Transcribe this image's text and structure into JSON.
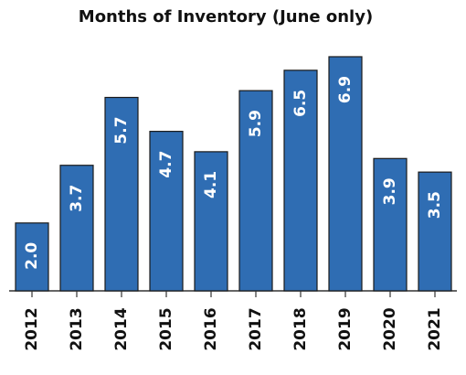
{
  "chart_data": {
    "type": "bar",
    "title": "Months of Inventory (June only)",
    "categories": [
      "2012",
      "2013",
      "2014",
      "2015",
      "2016",
      "2017",
      "2018",
      "2019",
      "2020",
      "2021"
    ],
    "values": [
      2.0,
      3.7,
      5.7,
      4.7,
      4.1,
      5.9,
      6.5,
      6.9,
      3.9,
      3.5
    ],
    "value_labels": [
      "2.0",
      "3.7",
      "5.7",
      "4.7",
      "4.1",
      "5.9",
      "6.5",
      "6.9",
      "3.9",
      "3.5"
    ],
    "color": "#2f6db3"
  }
}
